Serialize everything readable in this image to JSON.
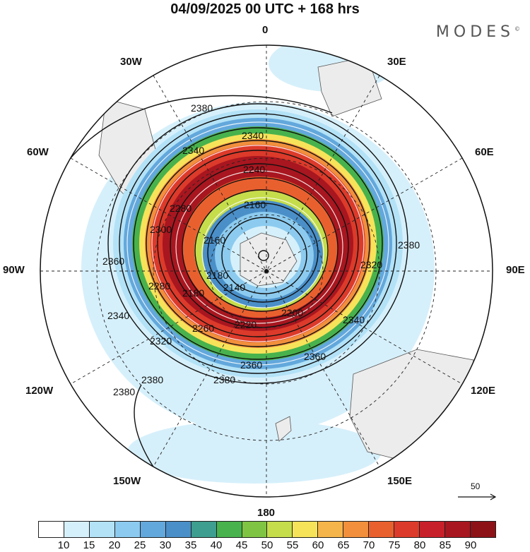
{
  "header": {
    "title": "04/09/2025  00 UTC  + 168 hrs",
    "brand": "MODES",
    "brand_mark": "©"
  },
  "longitude_labels": {
    "top": "0",
    "lon_30e": "30E",
    "lon_60e": "60E",
    "lon_90e": "90E",
    "lon_120e": "120E",
    "lon_150e": "150E",
    "bottom": "180",
    "lon_150w": "150W",
    "lon_120w": "120W",
    "lon_90w": "90W",
    "lon_60w": "60W",
    "lon_30w": "30W"
  },
  "contours": {
    "c2380a": "2380",
    "c2380b": "2380",
    "c2380c": "2380",
    "c2380d": "2380",
    "c2380e": "2380",
    "c2360a": "2360",
    "c2360b": "2360",
    "c2360c": "2360",
    "c2340a": "2340",
    "c2340b": "2340",
    "c2340c": "2340",
    "c2340d": "2340",
    "c2320a": "2320",
    "c2320b": "2320",
    "c2300": "2300",
    "c2280a": "2280",
    "c2280b": "2280",
    "c2260": "2260",
    "c2240": "2240",
    "c2220": "2220",
    "c2200": "2200",
    "c2180a": "2180",
    "c2180b": "2180",
    "c2160a": "2160",
    "c2160b": "2160",
    "c2140": "2140"
  },
  "reference_vector": {
    "value": "50"
  },
  "colorbar": {
    "colors": [
      "#ffffff",
      "#d6f0fb",
      "#b3e2f7",
      "#8ccbef",
      "#63a8dc",
      "#4a8fc8",
      "#3e9e8f",
      "#48b24c",
      "#7fc543",
      "#c5dd4b",
      "#f7e35a",
      "#f6b54a",
      "#f18f3c",
      "#e9602f",
      "#dc3a2a",
      "#c8202a",
      "#a8161f",
      "#8c1218"
    ],
    "tick_labels": [
      "10",
      "15",
      "20",
      "25",
      "30",
      "35",
      "40",
      "45",
      "50",
      "55",
      "60",
      "65",
      "70",
      "75",
      "80",
      "85",
      "90"
    ]
  }
}
